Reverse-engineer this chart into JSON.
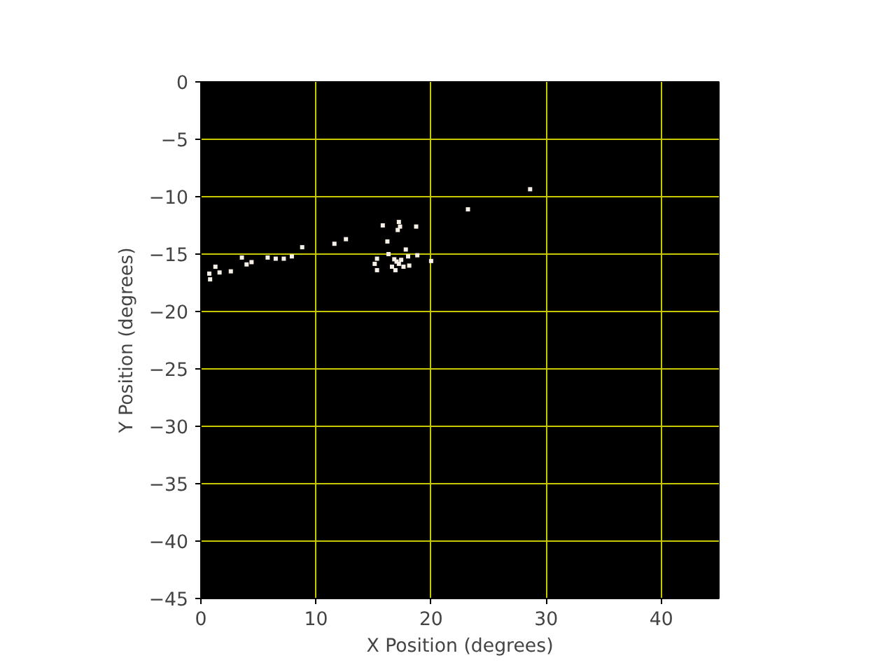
{
  "chart_data": {
    "type": "scatter",
    "xlabel": "X Position (degrees)",
    "ylabel": "Y Position (degrees)",
    "x": [
      0.73,
      1.26,
      1.62,
      2.6,
      3.56,
      3.97,
      4.4,
      5.8,
      6.5,
      7.2,
      7.9,
      8.8,
      11.6,
      12.6,
      15.8,
      16.2,
      17.2,
      17.3,
      17.1,
      18.7,
      17.8,
      15.3,
      15.3,
      17.0,
      17.2,
      16.8,
      17.4,
      16.6,
      17.6,
      18.0,
      18.1,
      16.9,
      16.3,
      18.8,
      20.0,
      15.1,
      28.6,
      23.2,
      0.8
    ],
    "values": [
      -16.7,
      -16.1,
      -16.6,
      -16.5,
      -15.3,
      -15.9,
      -15.7,
      -15.3,
      -15.4,
      -15.4,
      -15.2,
      -14.4,
      -14.1,
      -13.7,
      -12.5,
      -13.9,
      -12.2,
      -12.6,
      -12.9,
      -12.6,
      -14.6,
      -15.4,
      -16.4,
      -15.65,
      -15.85,
      -15.45,
      -15.5,
      -16.1,
      -16.1,
      -15.2,
      -16.0,
      -16.4,
      -15.0,
      -15.1,
      -15.6,
      -15.85,
      -9.35,
      -11.1,
      -17.2
    ],
    "color": "#f5efe6",
    "marker": "square",
    "xlim": [
      0,
      45
    ],
    "ylim": [
      -45,
      0
    ],
    "xticks": [
      0,
      10,
      20,
      30,
      40
    ],
    "yticks": [
      0,
      -5,
      -10,
      -15,
      -20,
      -25,
      -30,
      -35,
      -40,
      -45
    ],
    "grid": true
  }
}
